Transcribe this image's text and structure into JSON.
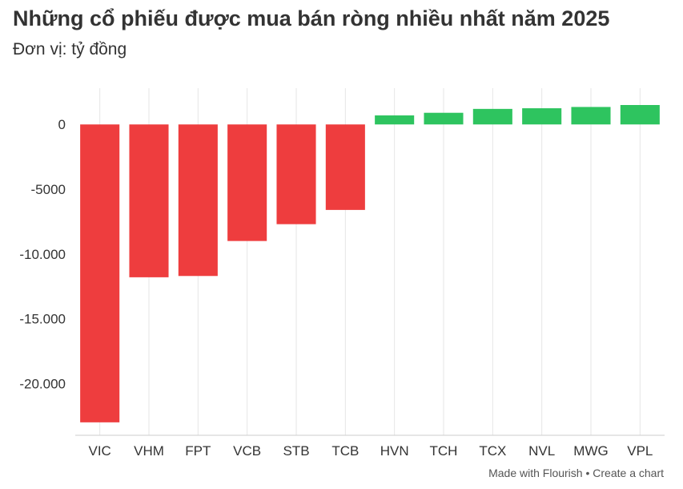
{
  "header": {
    "title": "Những cổ phiếu được mua bán ròng nhiều nhất năm 2025",
    "subtitle": "Đơn vị: tỷ đồng"
  },
  "footer": {
    "made_with": "Made with Flourish",
    "separator": "•",
    "create_link": "Create a chart"
  },
  "colors": {
    "negative": "#ee3d3e",
    "positive": "#2ec45f",
    "grid": "#e6e6e6",
    "axis_text": "#333333"
  },
  "chart_data": {
    "type": "bar",
    "title": "Những cổ phiếu được mua bán ròng nhiều nhất năm 2025",
    "subtitle": "Đơn vị: tỷ đồng",
    "categories": [
      "VIC",
      "VHM",
      "FPT",
      "VCB",
      "STB",
      "TCB",
      "HVN",
      "TCH",
      "TCX",
      "NVL",
      "MWG",
      "VPL"
    ],
    "values": [
      -23000,
      -11800,
      -11700,
      -9000,
      -7700,
      -6600,
      700,
      900,
      1200,
      1250,
      1350,
      1500
    ],
    "ylim": [
      -24000,
      2800
    ],
    "yticks": [
      0,
      -5000,
      -10000,
      -15000,
      -20000
    ],
    "ytick_labels": [
      "0",
      "-5000",
      "-10.000",
      "-15.000",
      "-20.000"
    ],
    "grid": "vertical",
    "legend": "none"
  }
}
